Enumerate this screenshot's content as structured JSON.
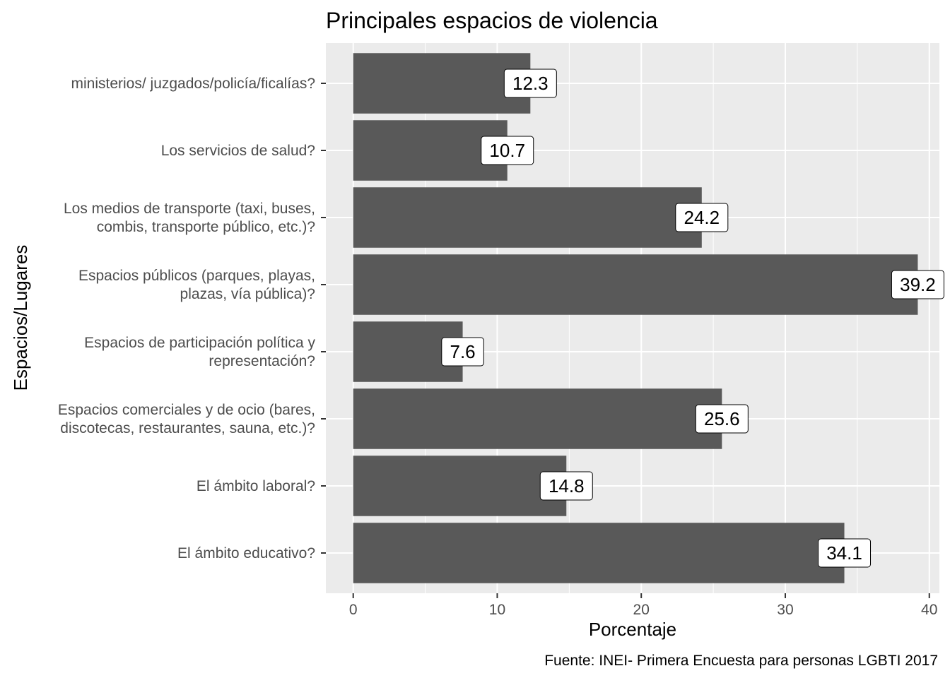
{
  "chart_data": {
    "type": "bar",
    "orientation": "horizontal",
    "title": "Principales espacios de violencia",
    "xlabel": "Porcentaje",
    "ylabel": "Espacios/Lugares",
    "caption": "Fuente: INEI- Primera Encuesta para personas LGBTI 2017",
    "categories": [
      [
        "ministerios/ juzgados/policía/ficalías?"
      ],
      [
        "Los servicios de salud?"
      ],
      [
        "Los medios de transporte (taxi, buses,",
        "combis, transporte público, etc.)?"
      ],
      [
        "Espacios públicos (parques, playas,",
        "plazas, vía pública)?"
      ],
      [
        "Espacios de participación política y",
        "representación?"
      ],
      [
        "Espacios comerciales y de ocio (bares,",
        "discotecas, restaurantes, sauna, etc.)?"
      ],
      [
        "El ámbito laboral?"
      ],
      [
        "El ámbito educativo?"
      ]
    ],
    "values": [
      12.3,
      10.7,
      24.2,
      39.2,
      7.6,
      25.6,
      14.8,
      34.1
    ],
    "value_labels": [
      "12.3",
      "10.7",
      "24.2",
      "39.2",
      "7.6",
      "25.6",
      "14.8",
      "34.1"
    ],
    "xticks": [
      "0",
      "10",
      "20",
      "30",
      "40"
    ],
    "xlim": [
      -1.9,
      40.7
    ],
    "grid": true,
    "legend": "none",
    "colors": {
      "bar": "#595959",
      "panel": "#ebebeb",
      "grid": "#ffffff",
      "label_box": "#ffffff",
      "text": "#000000",
      "tick_text": "#4d4d4d"
    }
  }
}
